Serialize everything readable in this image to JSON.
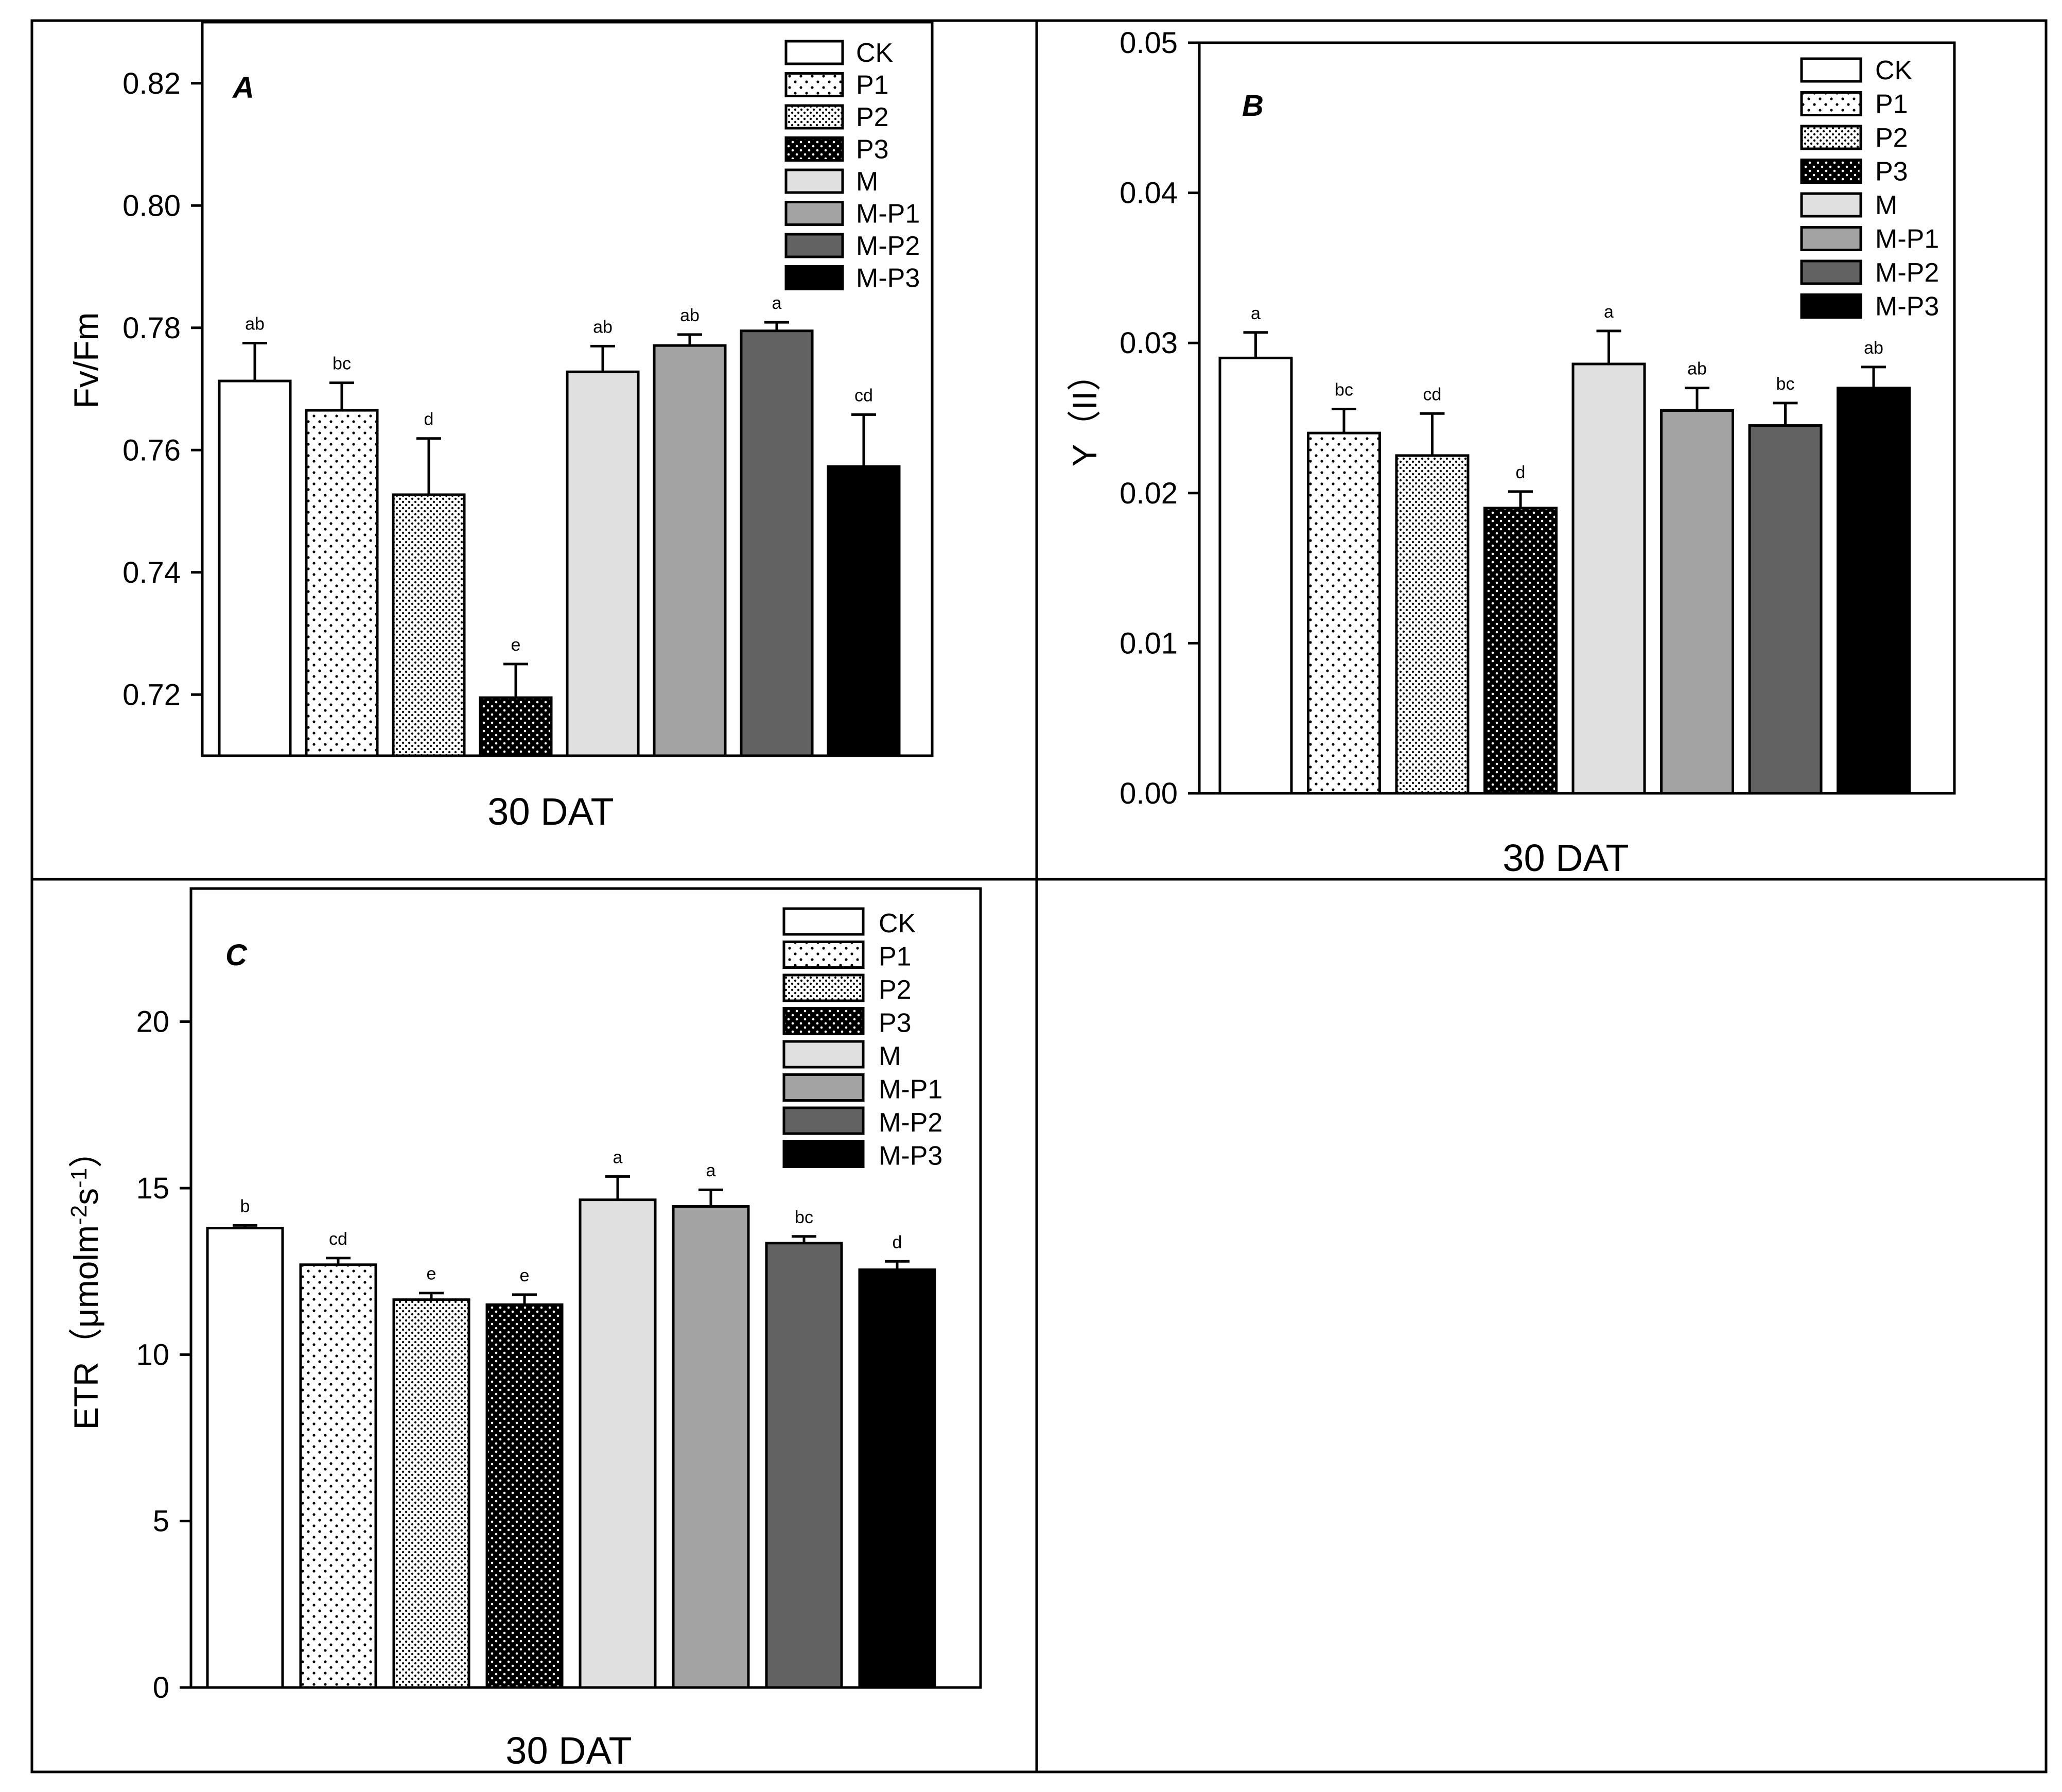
{
  "chart_data": [
    {
      "type": "bar",
      "panel": "A",
      "ylabel": "Fv/Fm",
      "xlabel": "30 DAT",
      "ylim": [
        0.71,
        0.83
      ],
      "yticks": [
        "0.72",
        "0.74",
        "0.76",
        "0.78",
        "0.80",
        "0.82"
      ],
      "categories": [
        "CK",
        "P1",
        "P2",
        "P3",
        "M",
        "M-P1",
        "M-P2",
        "M-P3"
      ],
      "values": [
        0.7713,
        0.7665,
        0.7527,
        0.7195,
        0.7728,
        0.7771,
        0.7795,
        0.7573
      ],
      "errors": [
        0.0062,
        0.0045,
        0.0092,
        0.0055,
        0.0042,
        0.0018,
        0.0014,
        0.0085
      ],
      "letters": [
        "ab",
        "bc",
        "d",
        "e",
        "ab",
        "ab",
        "a",
        "cd"
      ]
    },
    {
      "type": "bar",
      "panel": "B",
      "ylabel": "Y（II）",
      "xlabel": "30 DAT",
      "ylim": [
        0,
        0.05
      ],
      "yticks": [
        "0.00",
        "0.01",
        "0.02",
        "0.03",
        "0.04",
        "0.05"
      ],
      "categories": [
        "CK",
        "P1",
        "P2",
        "P3",
        "M",
        "M-P1",
        "M-P2",
        "M-P3"
      ],
      "values": [
        0.029,
        0.024,
        0.0225,
        0.019,
        0.0286,
        0.0255,
        0.0245,
        0.027
      ],
      "errors": [
        0.0017,
        0.0016,
        0.0028,
        0.0011,
        0.0022,
        0.0015,
        0.0015,
        0.0014
      ],
      "letters": [
        "a",
        "bc",
        "cd",
        "d",
        "a",
        "ab",
        "bc",
        "ab"
      ]
    },
    {
      "type": "bar",
      "panel": "C",
      "ylabel": "ETR（μmolm",
      "ylabel_sup1": "-2",
      "ylabel_mid": "s",
      "ylabel_sup2": "-1",
      "ylabel_end": "）",
      "xlabel": "30 DAT",
      "ylim": [
        0,
        24
      ],
      "yticks": [
        "0",
        "5",
        "10",
        "15",
        "20"
      ],
      "categories": [
        "CK",
        "P1",
        "P2",
        "P3",
        "M",
        "M-P1",
        "M-P2",
        "M-P3"
      ],
      "values": [
        13.8,
        12.7,
        11.65,
        11.5,
        14.65,
        14.45,
        13.35,
        12.55
      ],
      "errors": [
        0.08,
        0.2,
        0.2,
        0.3,
        0.7,
        0.5,
        0.2,
        0.25
      ],
      "letters": [
        "b",
        "cd",
        "e",
        "e",
        "a",
        "a",
        "bc",
        "d"
      ]
    }
  ],
  "legend": [
    "CK",
    "P1",
    "P2",
    "P3",
    "M",
    "M-P1",
    "M-P2",
    "M-P3"
  ],
  "colors": {
    "ck": "#ffffff",
    "p_pattern_bg": "#ffffff",
    "p3_bg": "#000000",
    "m": "#e0e0e0",
    "m_p1": "#a3a3a3",
    "m_p2": "#626262",
    "m_p3": "#000000",
    "border": "#000000"
  }
}
